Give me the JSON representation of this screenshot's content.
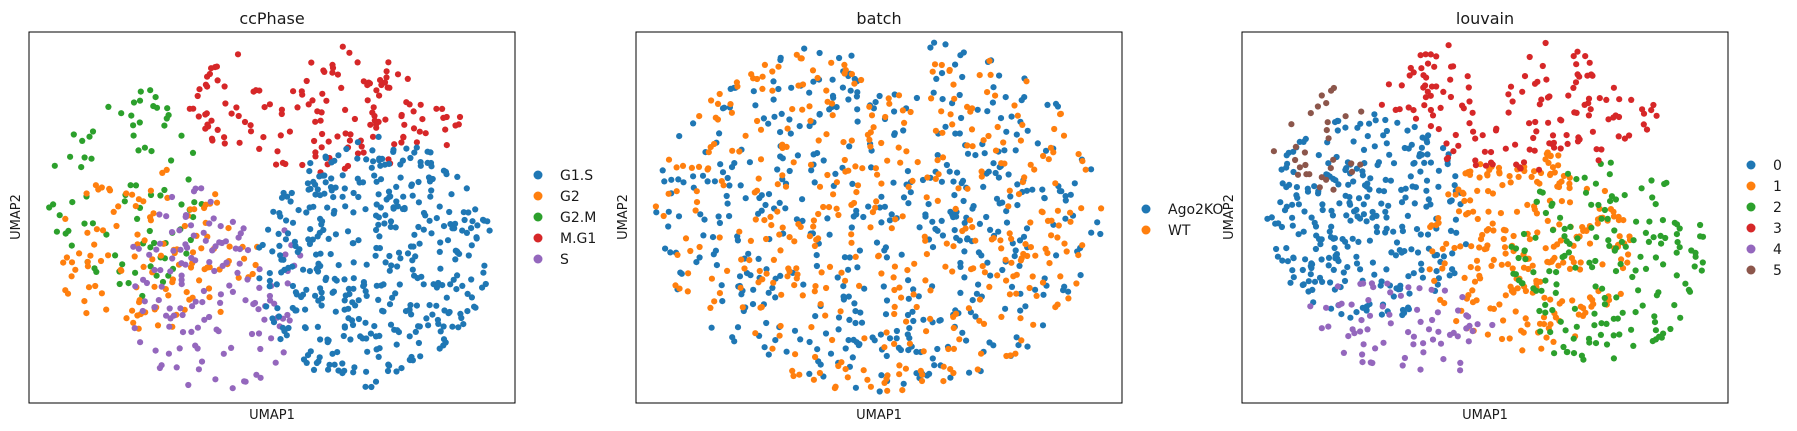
{
  "chart_data": [
    {
      "type": "scatter",
      "title": "ccPhase",
      "xlabel": "UMAP1",
      "ylabel": "UMAP2",
      "grid": false,
      "ticks": false,
      "legend": "right",
      "categories": [
        "G1.S",
        "G2",
        "G2.M",
        "M.G1",
        "S"
      ],
      "colors": [
        "#1f77b4",
        "#ff7f0e",
        "#2ca02c",
        "#d62728",
        "#9467bd"
      ],
      "regions": [
        {
          "category": "M.G1",
          "count": 150,
          "x": [
            0.33,
            0.92
          ],
          "y": [
            0.62,
            0.995
          ]
        },
        {
          "category": "G2.M",
          "count": 85,
          "x": [
            0.04,
            0.36
          ],
          "y": [
            0.26,
            0.86
          ]
        },
        {
          "category": "G2",
          "count": 120,
          "x": [
            0.05,
            0.47
          ],
          "y": [
            0.18,
            0.63
          ]
        },
        {
          "category": "S",
          "count": 140,
          "x": [
            0.2,
            0.57
          ],
          "y": [
            0.03,
            0.6
          ]
        },
        {
          "category": "G1.S",
          "count": 420,
          "x": [
            0.47,
            0.96
          ],
          "y": [
            0.03,
            0.72
          ]
        }
      ]
    },
    {
      "type": "scatter",
      "title": "batch",
      "xlabel": "UMAP1",
      "ylabel": "UMAP2",
      "grid": false,
      "ticks": false,
      "legend": "right",
      "categories": [
        "Ago2KO",
        "WT"
      ],
      "colors": [
        "#1f77b4",
        "#ff7f0e"
      ],
      "regions": [
        {
          "category": "Ago2KO",
          "count": 500,
          "x": [
            0.04,
            0.96
          ],
          "y": [
            0.03,
            0.995
          ]
        },
        {
          "category": "WT",
          "count": 420,
          "x": [
            0.04,
            0.96
          ],
          "y": [
            0.03,
            0.995
          ]
        }
      ]
    },
    {
      "type": "scatter",
      "title": "louvain",
      "xlabel": "UMAP1",
      "ylabel": "UMAP2",
      "grid": false,
      "ticks": false,
      "legend": "right",
      "categories": [
        "0",
        "1",
        "2",
        "3",
        "4",
        "5"
      ],
      "colors": [
        "#1f77b4",
        "#ff7f0e",
        "#2ca02c",
        "#d62728",
        "#9467bd",
        "#8c564b"
      ],
      "regions": [
        {
          "category": "0",
          "count": 300,
          "x": [
            0.05,
            0.47
          ],
          "y": [
            0.22,
            0.78
          ]
        },
        {
          "category": "1",
          "count": 250,
          "x": [
            0.38,
            0.8
          ],
          "y": [
            0.14,
            0.68
          ]
        },
        {
          "category": "2",
          "count": 170,
          "x": [
            0.55,
            0.96
          ],
          "y": [
            0.08,
            0.65
          ]
        },
        {
          "category": "3",
          "count": 150,
          "x": [
            0.28,
            0.86
          ],
          "y": [
            0.62,
            0.995
          ]
        },
        {
          "category": "4",
          "count": 70,
          "x": [
            0.06,
            0.52
          ],
          "y": [
            0.04,
            0.33
          ]
        },
        {
          "category": "5",
          "count": 30,
          "x": [
            0.04,
            0.26
          ],
          "y": [
            0.56,
            0.87
          ]
        }
      ]
    }
  ]
}
